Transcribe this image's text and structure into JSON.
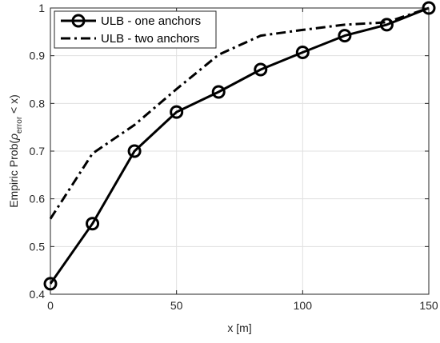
{
  "chart_data": {
    "type": "line",
    "x": [
      0,
      16.67,
      33.33,
      50,
      66.67,
      83.33,
      100,
      116.67,
      133.33,
      150
    ],
    "series": [
      {
        "name": "ULB - one anchors",
        "style": "solid",
        "marker": "circle",
        "values": [
          0.422,
          0.548,
          0.7,
          0.782,
          0.824,
          0.871,
          0.907,
          0.942,
          0.965,
          1.0
        ]
      },
      {
        "name": "ULB - two anchors",
        "style": "dash-dot",
        "marker": "none",
        "values": [
          0.558,
          0.695,
          0.755,
          0.83,
          0.902,
          0.942,
          0.954,
          0.965,
          0.97,
          1.0
        ]
      }
    ],
    "xlabel": "x [m]",
    "ylabel_main": "Empiric Prob(",
    "ylabel_rho": "ρ",
    "ylabel_sub": "error",
    "ylabel_tail": " < x)",
    "xlim": [
      0,
      150
    ],
    "ylim": [
      0.4,
      1.0
    ],
    "xticks": [
      0,
      50,
      100,
      150
    ],
    "yticks": [
      0.4,
      0.5,
      0.6,
      0.7,
      0.8,
      0.9,
      1.0
    ],
    "xtick_labels": [
      "0",
      "50",
      "100",
      "150"
    ],
    "ytick_labels": [
      "0.4",
      "0.5",
      "0.6",
      "0.7",
      "0.8",
      "0.9",
      "1"
    ],
    "grid": true,
    "legend_position": "top-left",
    "colors": {
      "line": "#000000",
      "grid": "#e0e0e0",
      "axis": "#262626"
    }
  }
}
